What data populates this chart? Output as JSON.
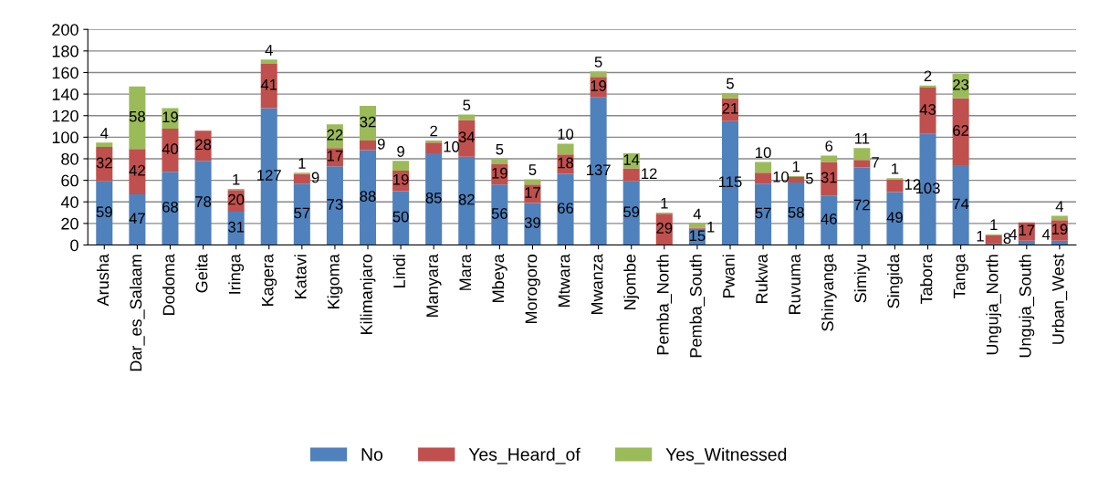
{
  "chart_data": {
    "type": "bar",
    "stacked": true,
    "data_labels": true,
    "grid": "y",
    "legend": "bottom",
    "categories": [
      "Arusha",
      "Dar_es_Salaam",
      "Dodoma",
      "Geita",
      "Iringa",
      "Kagera",
      "Katavi",
      "Kigoma",
      "Kilimanjaro",
      "Lindi",
      "Manyara",
      "Mara",
      "Mbeya",
      "Morogoro",
      "Mtwara",
      "Mwanza",
      "Njombe",
      "Pemba_North",
      "Pemba_South",
      "Pwani",
      "Rukwa",
      "Ruvuma",
      "Shinyanga",
      "Simiyu",
      "Singida",
      "Tabora",
      "Tanga",
      "Unguja_North",
      "Unguja_South",
      "Urban_West"
    ],
    "series": [
      {
        "name": "No",
        "color": "#4f81bd",
        "values": [
          59,
          47,
          68,
          78,
          31,
          127,
          57,
          73,
          88,
          50,
          85,
          82,
          56,
          39,
          66,
          137,
          59,
          null,
          15,
          115,
          57,
          58,
          46,
          72,
          49,
          103,
          74,
          1,
          4,
          4
        ]
      },
      {
        "name": "Yes_Heard_of",
        "color": "#c0504d",
        "values": [
          32,
          42,
          40,
          28,
          20,
          41,
          9,
          17,
          9,
          19,
          10,
          34,
          19,
          17,
          18,
          19,
          12,
          29,
          1,
          21,
          10,
          5,
          31,
          7,
          12,
          43,
          62,
          8,
          17,
          19
        ]
      },
      {
        "name": "Yes_Witnessed",
        "color": "#9bbb59",
        "values": [
          4,
          58,
          19,
          null,
          1,
          4,
          1,
          22,
          32,
          9,
          2,
          5,
          5,
          5,
          10,
          5,
          14,
          1,
          4,
          5,
          10,
          1,
          6,
          11,
          1,
          2,
          23,
          1,
          null,
          4
        ]
      }
    ],
    "ylim": [
      0,
      200
    ],
    "yticks": [
      0,
      20,
      40,
      60,
      80,
      100,
      120,
      140,
      160,
      180,
      200
    ]
  }
}
